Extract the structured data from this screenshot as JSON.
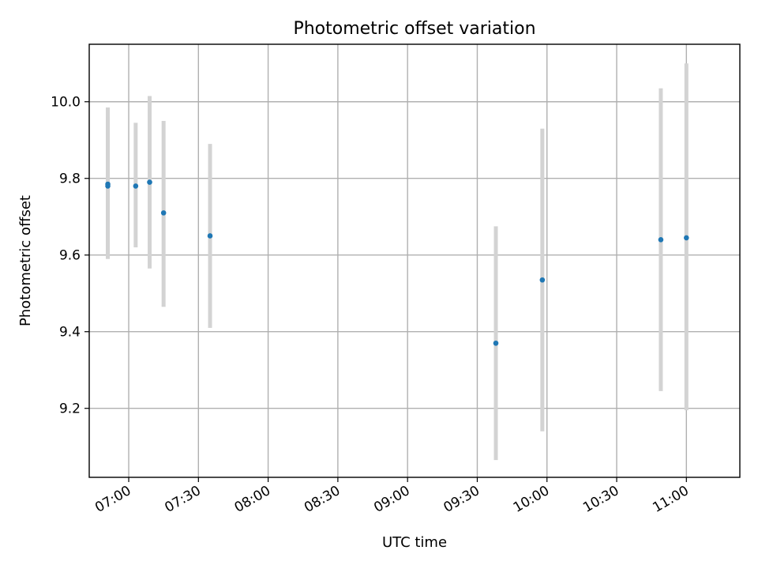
{
  "chart_data": {
    "type": "scatter",
    "title": "Photometric offset variation",
    "xlabel": "UTC time",
    "ylabel": "Photometric offset",
    "x_unit": "time",
    "xlim": [
      "06:43",
      "11:23"
    ],
    "ylim": [
      9.02,
      10.15
    ],
    "x_ticks": [
      "07:00",
      "07:30",
      "08:00",
      "08:30",
      "09:00",
      "09:30",
      "10:00",
      "10:30",
      "11:00"
    ],
    "y_ticks": [
      9.2,
      9.4,
      9.6,
      9.8,
      10.0
    ],
    "y_tick_labels": [
      "9.2",
      "9.4",
      "9.6",
      "9.8",
      "10.0"
    ],
    "grid": true,
    "points": [
      {
        "x": "06:51",
        "y": 9.78,
        "yerr_low": 9.59,
        "yerr_high": 9.96
      },
      {
        "x": "06:51",
        "y": 9.785,
        "yerr_low": 9.59,
        "yerr_high": 9.985
      },
      {
        "x": "06:63",
        "y": 9.78,
        "yerr_low": 9.62,
        "yerr_high": 9.945
      },
      {
        "x": "07:09",
        "y": 9.79,
        "yerr_low": 9.565,
        "yerr_high": 10.015
      },
      {
        "x": "07:15",
        "y": 9.71,
        "yerr_low": 9.465,
        "yerr_high": 9.95
      },
      {
        "x": "07:35",
        "y": 9.65,
        "yerr_low": 9.41,
        "yerr_high": 9.89
      },
      {
        "x": "09:38",
        "y": 9.37,
        "yerr_low": 9.065,
        "yerr_high": 9.675
      },
      {
        "x": "09:58",
        "y": 9.535,
        "yerr_low": 9.14,
        "yerr_high": 9.93
      },
      {
        "x": "10:49",
        "y": 9.64,
        "yerr_low": 9.245,
        "yerr_high": 10.035
      },
      {
        "x": "11:00",
        "y": 9.645,
        "yerr_low": 9.195,
        "yerr_high": 10.1
      }
    ],
    "colors": {
      "marker": "#1f77b4",
      "errorbar": "#d3d3d3"
    }
  }
}
